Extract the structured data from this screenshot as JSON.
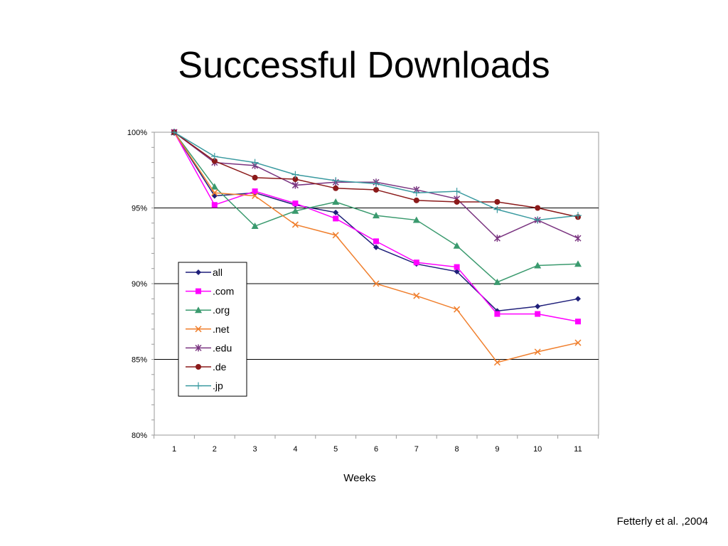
{
  "slide": {
    "title": "Successful Downloads",
    "citation": "Fetterly et al. ,2004"
  },
  "chart_data": {
    "type": "line",
    "title": "",
    "xlabel": "Weeks",
    "ylabel": "",
    "x": [
      1,
      2,
      3,
      4,
      5,
      6,
      7,
      8,
      9,
      10,
      11
    ],
    "x_tick_labels": [
      "1",
      "2",
      "3",
      "4",
      "5",
      "6",
      "7",
      "8",
      "9",
      "10",
      "11"
    ],
    "ylim": [
      80,
      100
    ],
    "y_ticks": [
      80,
      85,
      90,
      95,
      100
    ],
    "y_tick_labels": [
      "80%",
      "85%",
      "90%",
      "95%",
      "100%"
    ],
    "grid": "horizontal major lines",
    "legend_position": "left-center",
    "series": [
      {
        "name": "all",
        "color": "#1f1f7a",
        "marker": "diamond",
        "values": [
          100,
          95.8,
          96.0,
          95.2,
          94.7,
          92.4,
          91.3,
          90.8,
          88.2,
          88.5,
          89.0
        ]
      },
      {
        "name": ".com",
        "color": "#ff00ff",
        "marker": "square",
        "values": [
          100,
          95.2,
          96.1,
          95.3,
          94.3,
          92.8,
          91.4,
          91.1,
          88.0,
          88.0,
          87.5
        ]
      },
      {
        "name": ".org",
        "color": "#3a9a6e",
        "marker": "triangle",
        "values": [
          100,
          96.4,
          93.8,
          94.8,
          95.4,
          94.5,
          94.2,
          92.5,
          90.1,
          91.2,
          91.3
        ]
      },
      {
        "name": ".net",
        "color": "#f07f2d",
        "marker": "x",
        "values": [
          100,
          96.0,
          95.8,
          93.9,
          93.2,
          90.0,
          89.2,
          88.3,
          84.8,
          85.5,
          86.1
        ]
      },
      {
        "name": ".edu",
        "color": "#7a3480",
        "marker": "star",
        "values": [
          100,
          98.0,
          97.8,
          96.5,
          96.7,
          96.7,
          96.2,
          95.6,
          93.0,
          94.2,
          93.0
        ]
      },
      {
        "name": ".de",
        "color": "#8b1a1a",
        "marker": "circle",
        "values": [
          100,
          98.1,
          97.0,
          96.9,
          96.3,
          96.2,
          95.5,
          95.4,
          95.4,
          95.0,
          94.4
        ]
      },
      {
        "name": ".jp",
        "color": "#3a9aa0",
        "marker": "plus",
        "values": [
          100,
          98.4,
          98.0,
          97.2,
          96.8,
          96.6,
          96.0,
          96.1,
          94.9,
          94.2,
          94.5
        ]
      }
    ]
  }
}
